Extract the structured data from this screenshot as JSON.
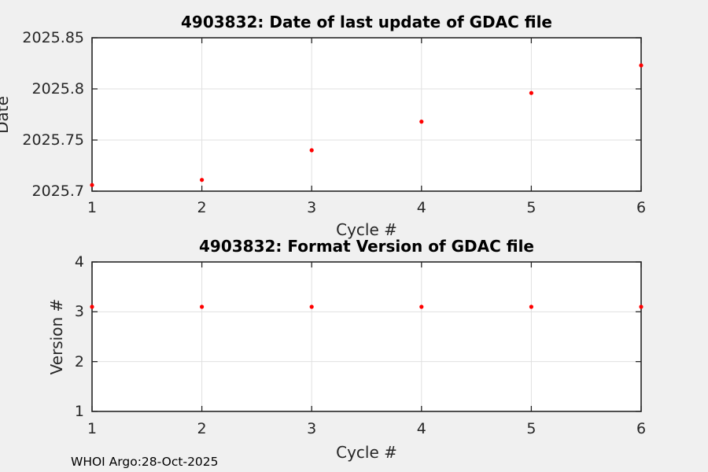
{
  "figure": {
    "footer": "WHOI Argo:28-Oct-2025"
  },
  "colors": {
    "figure_bg": "#f0f0f0",
    "plot_bg": "#ffffff",
    "spine": "#262626",
    "grid": "#e0e0e0",
    "tick_text": "#262626",
    "title_text": "#000000",
    "marker": "#ff0000"
  },
  "chart_data": [
    {
      "type": "scatter",
      "title": "4903832: Date of last update of GDAC file",
      "xlabel": "Cycle #",
      "ylabel": "Date",
      "x": [
        1,
        2,
        3,
        4,
        5,
        6
      ],
      "y": [
        2025.706,
        2025.711,
        2025.74,
        2025.768,
        2025.796,
        2025.823
      ],
      "xlim": [
        1,
        6
      ],
      "ylim": [
        2025.7,
        2025.85
      ],
      "xticks": [
        1,
        2,
        3,
        4,
        5,
        6
      ],
      "xtick_labels": [
        "1",
        "2",
        "3",
        "4",
        "5",
        "6"
      ],
      "yticks": [
        2025.7,
        2025.75,
        2025.8,
        2025.85
      ],
      "ytick_labels": [
        "2025.7",
        "2025.75",
        "2025.8",
        "2025.85"
      ],
      "grid": true,
      "legend": null,
      "marker": "dot-red"
    },
    {
      "type": "scatter",
      "title": "4903832: Format Version of GDAC file",
      "xlabel": "Cycle #",
      "ylabel": "Version #",
      "x": [
        1,
        2,
        3,
        4,
        5,
        6
      ],
      "y": [
        3.1,
        3.1,
        3.1,
        3.1,
        3.1,
        3.1
      ],
      "xlim": [
        1,
        6
      ],
      "ylim": [
        1,
        4
      ],
      "xticks": [
        1,
        2,
        3,
        4,
        5,
        6
      ],
      "xtick_labels": [
        "1",
        "2",
        "3",
        "4",
        "5",
        "6"
      ],
      "yticks": [
        1,
        2,
        3,
        4
      ],
      "ytick_labels": [
        "1",
        "2",
        "3",
        "4"
      ],
      "grid": true,
      "legend": null,
      "marker": "dot-red"
    }
  ]
}
